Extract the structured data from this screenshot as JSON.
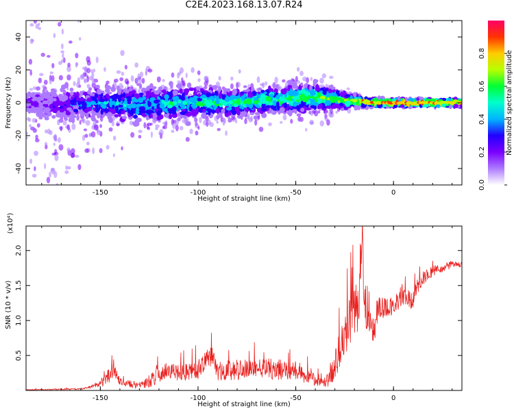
{
  "title": "C2E4.2023.168.13.07.R24",
  "colors": {
    "snr_line": "#e8201e",
    "axis": "#000000",
    "scale": [
      "#ffffff",
      "#ad7bff",
      "#7a00ff",
      "#2200ff",
      "#00b4ff",
      "#00ffcc",
      "#00ff33",
      "#b6ff00",
      "#ffcc00",
      "#ff3300",
      "#ff0066"
    ]
  },
  "chart_data": [
    {
      "type": "heatmap",
      "xlabel": "Height of straight line (km)",
      "ylabel": "Frequency (Hz)",
      "xlim": [
        -188,
        35
      ],
      "ylim": [
        -50,
        50
      ],
      "xticks": [
        -150,
        -100,
        -50,
        0
      ],
      "xtick_labels": [
        "-150",
        "-100",
        "-50",
        "0"
      ],
      "yticks": [
        -40,
        -20,
        0,
        20,
        40
      ],
      "ytick_labels": [
        "-40",
        "-20",
        "0",
        "20",
        "40"
      ],
      "colorbar": {
        "label": "Normalized spectral amplitude",
        "range": [
          0,
          1
        ],
        "ticks": [
          0.0,
          0.2,
          0.4,
          0.6,
          0.8
        ],
        "tick_labels": [
          "0.0",
          "0.2",
          "0.4",
          "0.6",
          "0.8"
        ]
      },
      "band": {
        "x": [
          -188,
          -170,
          -150,
          -130,
          -110,
          -90,
          -70,
          -50,
          -40,
          -30,
          -20,
          -10,
          0,
          10,
          20,
          35
        ],
        "center_hz": [
          0,
          -1,
          0,
          -2,
          0,
          0,
          1,
          3,
          3,
          2,
          1,
          0,
          0,
          0,
          0,
          0
        ],
        "core_halfwidth_hz": [
          6,
          7,
          8,
          9,
          8,
          7,
          7,
          7,
          7,
          5,
          3,
          2,
          2,
          2,
          2,
          2
        ],
        "peak_amplitude": [
          0.1,
          0.25,
          0.4,
          0.45,
          0.5,
          0.55,
          0.55,
          0.6,
          0.65,
          0.65,
          0.7,
          0.9,
          0.95,
          0.9,
          0.9,
          0.85
        ],
        "scatter_spread_hz": [
          50,
          50,
          20,
          18,
          15,
          12,
          12,
          12,
          15,
          8,
          4,
          2,
          1,
          1,
          1,
          1
        ]
      }
    },
    {
      "type": "line",
      "xlabel": "Height of straight line (km)",
      "ylabel": "SNR (10 * v/v)",
      "y_multiplier_label": "(x10⁴)",
      "xlim": [
        -188,
        35
      ],
      "ylim": [
        0,
        2.35
      ],
      "xticks": [
        -150,
        -100,
        -50,
        0
      ],
      "xtick_labels": [
        "-150",
        "-100",
        "-50",
        "0"
      ],
      "yticks": [
        0.5,
        1.0,
        1.5,
        2.0
      ],
      "ytick_labels": [
        "0.5",
        "1.0",
        "1.5",
        "2.0"
      ],
      "series": [
        {
          "x": [
            -188,
            -160,
            -155,
            -150,
            -146,
            -143,
            -140,
            -130,
            -122,
            -118,
            -110,
            -100,
            -93,
            -90,
            -80,
            -70,
            -60,
            -50,
            -45,
            -40,
            -37,
            -33,
            -29,
            -25,
            -22,
            -18,
            -16,
            -15,
            -14,
            -12,
            -10,
            -8,
            -5,
            -3,
            0,
            3,
            5,
            8,
            10,
            12,
            15,
            20,
            25,
            30,
            35
          ],
          "y": [
            0.01,
            0.02,
            0.05,
            0.1,
            0.2,
            0.3,
            0.12,
            0.06,
            0.18,
            0.28,
            0.25,
            0.3,
            0.5,
            0.28,
            0.3,
            0.32,
            0.3,
            0.3,
            0.22,
            0.15,
            0.1,
            0.15,
            0.45,
            0.8,
            1.0,
            1.2,
            2.2,
            1.4,
            1.1,
            0.9,
            0.85,
            1.2,
            1.2,
            1.2,
            1.2,
            1.3,
            1.4,
            1.3,
            1.3,
            1.5,
            1.6,
            1.7,
            1.75,
            1.8,
            1.8
          ],
          "noise": [
            0.005,
            0.01,
            0.02,
            0.05,
            0.12,
            0.1,
            0.06,
            0.04,
            0.12,
            0.12,
            0.12,
            0.14,
            0.15,
            0.14,
            0.15,
            0.15,
            0.15,
            0.14,
            0.12,
            0.08,
            0.06,
            0.1,
            0.25,
            0.3,
            0.35,
            0.4,
            0.3,
            0.35,
            0.3,
            0.25,
            0.25,
            0.2,
            0.18,
            0.15,
            0.12,
            0.15,
            0.18,
            0.15,
            0.12,
            0.12,
            0.1,
            0.08,
            0.06,
            0.05,
            0.04
          ]
        }
      ]
    }
  ]
}
